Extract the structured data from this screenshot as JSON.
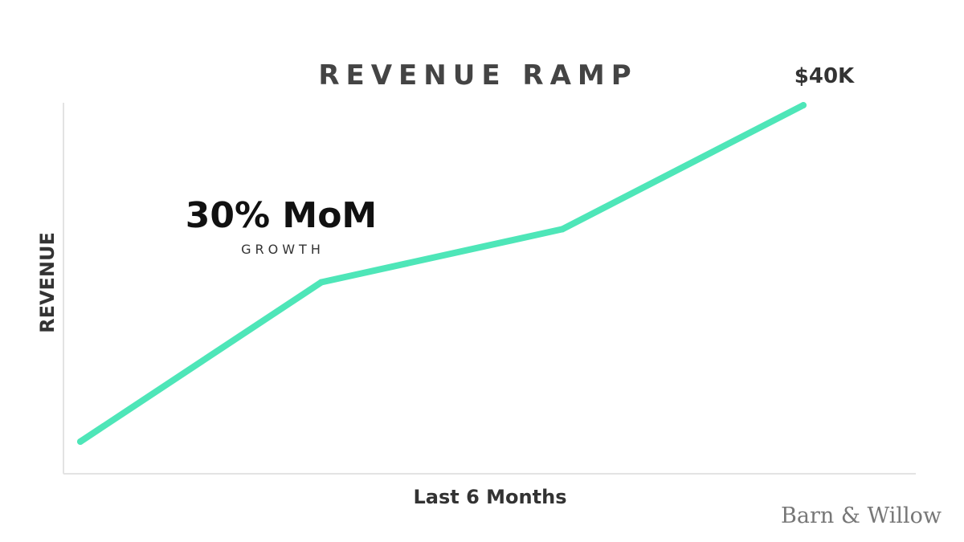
{
  "chart_data": {
    "type": "line",
    "title": "REVENUE RAMP",
    "xlabel": "Last 6 Months",
    "ylabel": "REVENUE",
    "x": [
      0,
      1,
      2,
      3
    ],
    "series": [
      {
        "values": [
          2,
          20,
          26,
          40
        ],
        "color": "#4ee6b8"
      }
    ],
    "ylim": [
      0,
      41
    ],
    "xlim": [
      0,
      3
    ],
    "grid": false,
    "annotations": {
      "end_value_label": "$40K",
      "growth_value": "30% MoM",
      "growth_caption": "GROWTH"
    }
  },
  "brand": {
    "name": "Barn & Willow"
  },
  "colors": {
    "line": "#4ee6b8",
    "axis": "#e3e3e3",
    "title": "#444444"
  }
}
